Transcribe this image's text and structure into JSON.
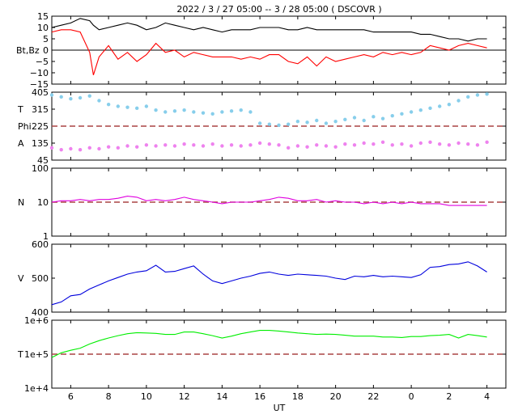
{
  "title": "2022 /  3 / 27   05:00 --  3 / 28   05:00 ( DSCOVR )",
  "x_axis": {
    "label": "UT",
    "ticks": [
      "6",
      "8",
      "10",
      "12",
      "14",
      "16",
      "18",
      "20",
      "22",
      "0",
      "2",
      "4"
    ],
    "hours": [
      6,
      8,
      10,
      12,
      14,
      16,
      18,
      20,
      22,
      24,
      26,
      28
    ],
    "range": [
      5,
      29
    ]
  },
  "colors": {
    "bt": "#000000",
    "bz": "#ff0000",
    "theta": "#87ceeb",
    "phi": "#c0c0c0",
    "density": "#e000e0",
    "velocity": "#0000dd",
    "temperature": "#00ee00",
    "reference": "#aa4444"
  },
  "panels": [
    {
      "id": "mag",
      "ylabels": [
        "Bt,Bz"
      ],
      "ticks": [
        "15",
        "10",
        "5",
        "0",
        "−5",
        "−10",
        "−15"
      ]
    },
    {
      "id": "angles",
      "ylabels": [
        "T",
        "Phi",
        "A"
      ],
      "ticks": [
        "405",
        "315",
        "225",
        "135",
        "45"
      ]
    },
    {
      "id": "density",
      "ylabels": [
        "N"
      ],
      "ticks": [
        "100",
        "10",
        "1"
      ]
    },
    {
      "id": "velocity",
      "ylabels": [
        "V"
      ],
      "ticks": [
        "600",
        "500",
        "400"
      ]
    },
    {
      "id": "temperature",
      "ylabels": [
        "T"
      ],
      "ticks": [
        "1e+6",
        "1e+5",
        "1e+4"
      ]
    }
  ],
  "chart_data": [
    {
      "type": "line",
      "title": "2022 /  3 / 27   05:00 --  3 / 28   05:00 ( DSCOVR )",
      "ylabel": "Bt,Bz",
      "ylim": [
        -15,
        15
      ],
      "reference_line": 0,
      "x": [
        5,
        5.5,
        6,
        6.5,
        7,
        7.2,
        7.5,
        8,
        8.5,
        9,
        9.5,
        10,
        10.5,
        11,
        11.5,
        12,
        12.5,
        13,
        13.5,
        14,
        14.5,
        15,
        15.5,
        16,
        16.5,
        17,
        17.5,
        18,
        18.5,
        19,
        19.5,
        20,
        20.5,
        21,
        21.5,
        22,
        22.5,
        23,
        23.5,
        24,
        24.5,
        25,
        25.5,
        26,
        26.5,
        27,
        27.5,
        28
      ],
      "series": [
        {
          "name": "Bt",
          "values": [
            10,
            11,
            12,
            14,
            13,
            11,
            9,
            10,
            11,
            12,
            11,
            9,
            10,
            12,
            11,
            10,
            9,
            10,
            9,
            8,
            9,
            9,
            9,
            10,
            10,
            10,
            9,
            9,
            10,
            9,
            9,
            9,
            9,
            9,
            9,
            8,
            8,
            8,
            8,
            8,
            7,
            7,
            6,
            5,
            5,
            4,
            5,
            5
          ]
        },
        {
          "name": "Bz",
          "values": [
            8,
            9,
            9,
            8,
            -1,
            -11,
            -3,
            2,
            -4,
            -1,
            -5,
            -2,
            3,
            -1,
            0,
            -3,
            -1,
            -2,
            -3,
            -3,
            -3,
            -4,
            -3,
            -4,
            -2,
            -2,
            -5,
            -6,
            -3,
            -7,
            -3,
            -5,
            -4,
            -3,
            -2,
            -3,
            -1,
            -2,
            -1,
            -2,
            -1,
            2,
            1,
            0,
            2,
            3,
            2,
            1
          ]
        }
      ]
    },
    {
      "type": "scatter",
      "ylabel": "T / Phi / A",
      "ylim": [
        45,
        405
      ],
      "reference_line": 225,
      "x": [
        5,
        5.5,
        6,
        6.5,
        7,
        7.5,
        8,
        8.5,
        9,
        9.5,
        10,
        10.5,
        11,
        11.5,
        12,
        12.5,
        13,
        13.5,
        14,
        14.5,
        15,
        15.5,
        16,
        16.5,
        17,
        17.5,
        18,
        18.5,
        19,
        19.5,
        20,
        20.5,
        21,
        21.5,
        22,
        22.5,
        23,
        23.5,
        24,
        24.5,
        25,
        25.5,
        26,
        26.5,
        27,
        27.5,
        28
      ],
      "series": [
        {
          "name": "Phi",
          "values": [
            110,
            100,
            105,
            100,
            110,
            105,
            115,
            110,
            120,
            115,
            125,
            120,
            125,
            120,
            130,
            125,
            120,
            130,
            120,
            125,
            120,
            125,
            135,
            130,
            125,
            110,
            120,
            115,
            125,
            120,
            115,
            130,
            125,
            135,
            130,
            140,
            125,
            130,
            120,
            135,
            140,
            130,
            125,
            135,
            130,
            125,
            140
          ]
        },
        {
          "name": "Theta",
          "values": [
            390,
            380,
            370,
            375,
            385,
            360,
            340,
            330,
            325,
            320,
            330,
            310,
            300,
            305,
            310,
            300,
            295,
            290,
            300,
            305,
            310,
            300,
            240,
            235,
            230,
            235,
            250,
            245,
            255,
            240,
            250,
            260,
            270,
            255,
            275,
            265,
            280,
            290,
            300,
            310,
            320,
            330,
            340,
            360,
            380,
            390,
            395
          ]
        }
      ]
    },
    {
      "type": "line",
      "ylabel": "N",
      "yscale": "log",
      "ylim": [
        1,
        100
      ],
      "reference_line": 10,
      "x": [
        5,
        5.5,
        6,
        6.5,
        7,
        7.5,
        8,
        8.5,
        9,
        9.5,
        10,
        10.5,
        11,
        11.5,
        12,
        12.5,
        13,
        13.5,
        14,
        14.5,
        15,
        15.5,
        16,
        16.5,
        17,
        17.5,
        18,
        18.5,
        19,
        19.5,
        20,
        20.5,
        21,
        21.5,
        22,
        22.5,
        23,
        23.5,
        24,
        24.5,
        25,
        25.5,
        26,
        26.5,
        27,
        27.5,
        28
      ],
      "series": [
        {
          "name": "N",
          "values": [
            10,
            11,
            11,
            12,
            11,
            12,
            12,
            13,
            15,
            14,
            11,
            12,
            11,
            12,
            14,
            12,
            11,
            10,
            9,
            10,
            10,
            10,
            11,
            12,
            14,
            13,
            11,
            11,
            12,
            10,
            11,
            10,
            10,
            9,
            10,
            9,
            10,
            9,
            10,
            9,
            9,
            9,
            8,
            8,
            8,
            8,
            8
          ]
        }
      ]
    },
    {
      "type": "line",
      "ylabel": "V",
      "ylim": [
        400,
        600
      ],
      "x": [
        5,
        5.5,
        6,
        6.5,
        7,
        7.5,
        8,
        8.5,
        9,
        9.5,
        10,
        10.5,
        11,
        11.5,
        12,
        12.5,
        13,
        13.5,
        14,
        14.5,
        15,
        15.5,
        16,
        16.5,
        17,
        17.5,
        18,
        18.5,
        19,
        19.5,
        20,
        20.5,
        21,
        21.5,
        22,
        22.5,
        23,
        23.5,
        24,
        24.5,
        25,
        25.5,
        26,
        26.5,
        27,
        27.5,
        28
      ],
      "series": [
        {
          "name": "V",
          "values": [
            422,
            430,
            448,
            452,
            468,
            480,
            492,
            502,
            512,
            518,
            522,
            538,
            518,
            520,
            528,
            536,
            512,
            492,
            484,
            492,
            500,
            506,
            514,
            518,
            512,
            508,
            512,
            510,
            508,
            506,
            500,
            496,
            506,
            504,
            508,
            504,
            506,
            504,
            502,
            510,
            532,
            534,
            540,
            542,
            548,
            536,
            518
          ]
        }
      ]
    },
    {
      "type": "line",
      "ylabel": "T",
      "yscale": "log",
      "ylim": [
        10000,
        1000000
      ],
      "reference_line": 100000,
      "x": [
        5,
        5.5,
        6,
        6.5,
        7,
        7.5,
        8,
        8.5,
        9,
        9.5,
        10,
        10.5,
        11,
        11.5,
        12,
        12.5,
        13,
        13.5,
        14,
        14.5,
        15,
        15.5,
        16,
        16.5,
        17,
        17.5,
        18,
        18.5,
        19,
        19.5,
        20,
        20.5,
        21,
        21.5,
        22,
        22.5,
        23,
        23.5,
        24,
        24.5,
        25,
        25.5,
        26,
        26.5,
        27,
        27.5,
        28
      ],
      "series": [
        {
          "name": "T",
          "values": [
            80000,
            110000,
            130000,
            150000,
            200000,
            250000,
            300000,
            350000,
            400000,
            430000,
            420000,
            410000,
            380000,
            380000,
            450000,
            450000,
            400000,
            350000,
            300000,
            340000,
            400000,
            450000,
            500000,
            500000,
            480000,
            450000,
            420000,
            400000,
            380000,
            390000,
            380000,
            360000,
            340000,
            340000,
            340000,
            320000,
            320000,
            310000,
            330000,
            330000,
            350000,
            360000,
            380000,
            300000,
            380000,
            350000,
            320000
          ]
        }
      ]
    }
  ]
}
